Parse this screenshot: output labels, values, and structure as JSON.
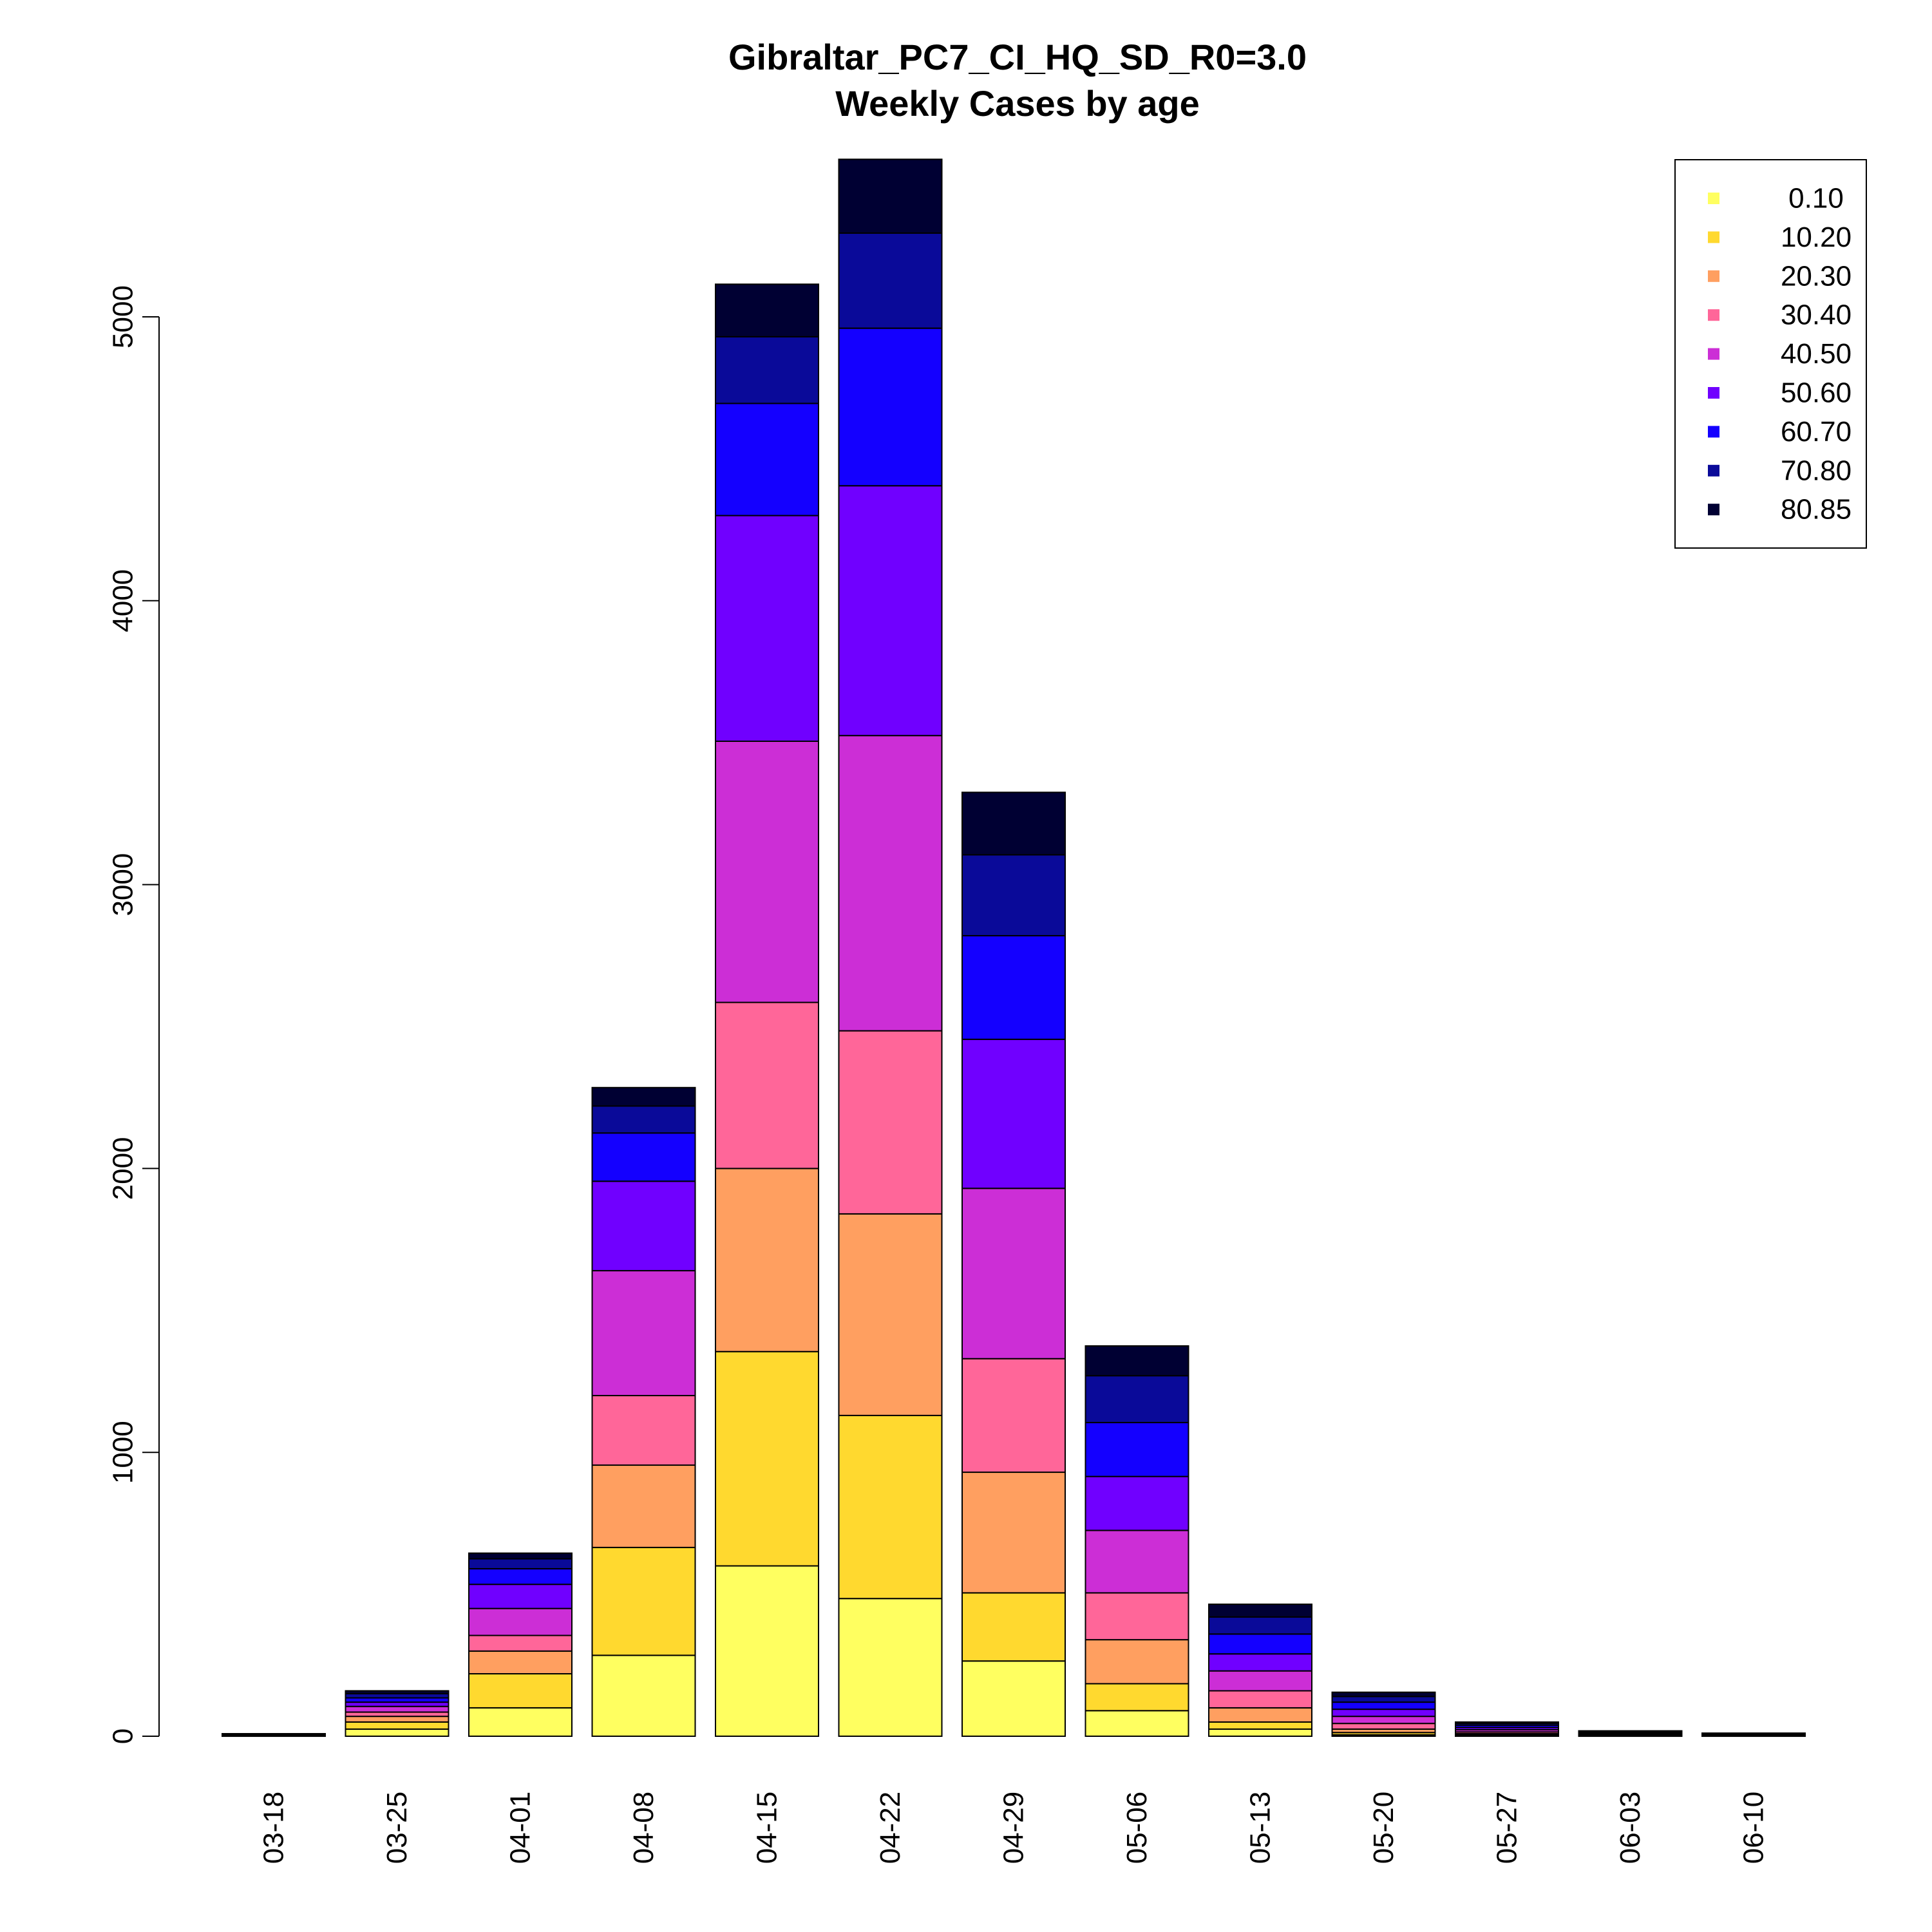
{
  "chart_data": {
    "type": "bar",
    "stacked": true,
    "title": "Gibraltar_PC7_CI_HQ_SD_R0=3.0",
    "subtitle": "Weekly Cases by age",
    "xlabel": "",
    "ylabel": "",
    "ylim": [
      0,
      5600
    ],
    "yticks": [
      0,
      1000,
      2000,
      3000,
      4000,
      5000
    ],
    "grid": false,
    "legend_position": "top-right",
    "categories": [
      "03-18",
      "03-25",
      "04-01",
      "04-08",
      "04-15",
      "04-22",
      "04-29",
      "05-06",
      "05-13",
      "05-20",
      "05-27",
      "06-03",
      "06-10"
    ],
    "series": [
      {
        "name": "0.10",
        "color": "#FFFF60",
        "values": [
          1,
          25,
          100,
          285,
          600,
          485,
          265,
          90,
          25,
          5,
          2,
          1,
          0
        ]
      },
      {
        "name": "10.20",
        "color": "#FFD92F",
        "values": [
          1,
          25,
          120,
          380,
          755,
          645,
          240,
          95,
          25,
          8,
          3,
          1,
          1
        ]
      },
      {
        "name": "20.30",
        "color": "#FF9F60",
        "values": [
          1,
          20,
          80,
          290,
          645,
          710,
          425,
          155,
          50,
          12,
          4,
          2,
          1
        ]
      },
      {
        "name": "30.40",
        "color": "#FF6699",
        "values": [
          1,
          15,
          55,
          245,
          585,
          645,
          400,
          165,
          60,
          20,
          6,
          2,
          1
        ]
      },
      {
        "name": "40.50",
        "color": "#CC2ED6",
        "values": [
          1,
          20,
          95,
          440,
          920,
          1040,
          600,
          220,
          70,
          25,
          8,
          3,
          2
        ]
      },
      {
        "name": "50.60",
        "color": "#7000FF",
        "values": [
          1,
          15,
          85,
          315,
          795,
          880,
          525,
          190,
          60,
          25,
          8,
          3,
          2
        ]
      },
      {
        "name": "60.70",
        "color": "#1400FF",
        "values": [
          1,
          15,
          55,
          170,
          395,
          555,
          365,
          190,
          70,
          25,
          8,
          3,
          2
        ]
      },
      {
        "name": "70.80",
        "color": "#0A0A99",
        "values": [
          1,
          15,
          35,
          95,
          235,
          335,
          285,
          165,
          60,
          20,
          6,
          2,
          1
        ]
      },
      {
        "name": "80.85",
        "color": "#000033",
        "values": [
          1,
          10,
          20,
          65,
          185,
          260,
          220,
          105,
          45,
          15,
          5,
          2,
          1
        ]
      }
    ]
  }
}
